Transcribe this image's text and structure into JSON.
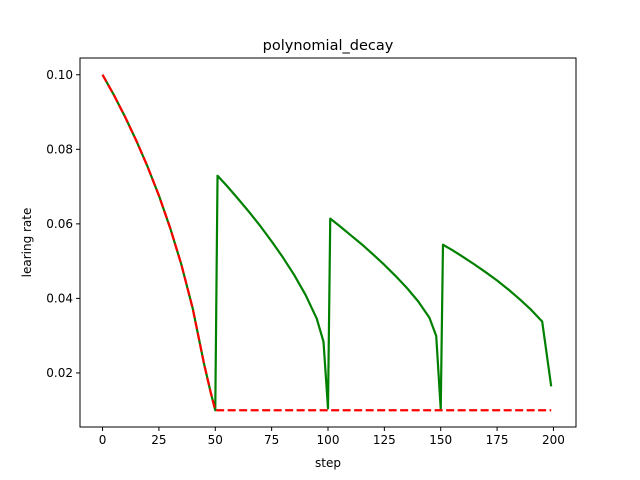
{
  "chart_data": {
    "type": "line",
    "title": "polynomial_decay",
    "xlabel": "step",
    "ylabel": "learing rate",
    "xlim": [
      -10,
      210
    ],
    "ylim": [
      0.0055,
      0.1045
    ],
    "x_ticks": [
      0,
      25,
      50,
      75,
      100,
      125,
      150,
      175,
      200
    ],
    "y_ticks": [
      0.02,
      0.04,
      0.06,
      0.08,
      0.1
    ],
    "x_tick_labels": [
      "0",
      "25",
      "50",
      "75",
      "100",
      "125",
      "150",
      "175",
      "200"
    ],
    "y_tick_labels": [
      "0.02",
      "0.04",
      "0.06",
      "0.08",
      "0.10"
    ],
    "grid": false,
    "legend": "none",
    "series": [
      {
        "color": "#008000",
        "style": "solid",
        "x": [
          0,
          5,
          10,
          15,
          20,
          25,
          30,
          35,
          40,
          45,
          48,
          50,
          51,
          55,
          60,
          65,
          70,
          75,
          80,
          85,
          90,
          95,
          98,
          100,
          101,
          105,
          110,
          115,
          120,
          125,
          130,
          135,
          140,
          145,
          148,
          150,
          151,
          155,
          160,
          165,
          170,
          175,
          180,
          185,
          190,
          195,
          199
        ],
        "y": [
          0.1,
          0.0946,
          0.0887,
          0.0823,
          0.0753,
          0.0676,
          0.0589,
          0.049,
          0.0373,
          0.0225,
          0.0147,
          0.01,
          0.0729,
          0.0703,
          0.0668,
          0.0632,
          0.0594,
          0.0553,
          0.051,
          0.0463,
          0.041,
          0.0346,
          0.0284,
          0.0105,
          0.0614,
          0.0595,
          0.057,
          0.0545,
          0.0518,
          0.049,
          0.046,
          0.0428,
          0.0392,
          0.0348,
          0.0299,
          0.0103,
          0.0544,
          0.053,
          0.0511,
          0.0491,
          0.047,
          0.0448,
          0.0424,
          0.0398,
          0.037,
          0.0338,
          0.0164
        ]
      },
      {
        "color": "#ff0000",
        "style": "dashed",
        "x": [
          0,
          5,
          10,
          15,
          20,
          25,
          30,
          35,
          40,
          45,
          48,
          50,
          51,
          75,
          100,
          125,
          150,
          175,
          199
        ],
        "y": [
          0.1,
          0.0946,
          0.0887,
          0.0823,
          0.0753,
          0.0676,
          0.0589,
          0.049,
          0.0373,
          0.0225,
          0.0147,
          0.01,
          0.01,
          0.01,
          0.01,
          0.01,
          0.01,
          0.01,
          0.01
        ]
      }
    ]
  }
}
